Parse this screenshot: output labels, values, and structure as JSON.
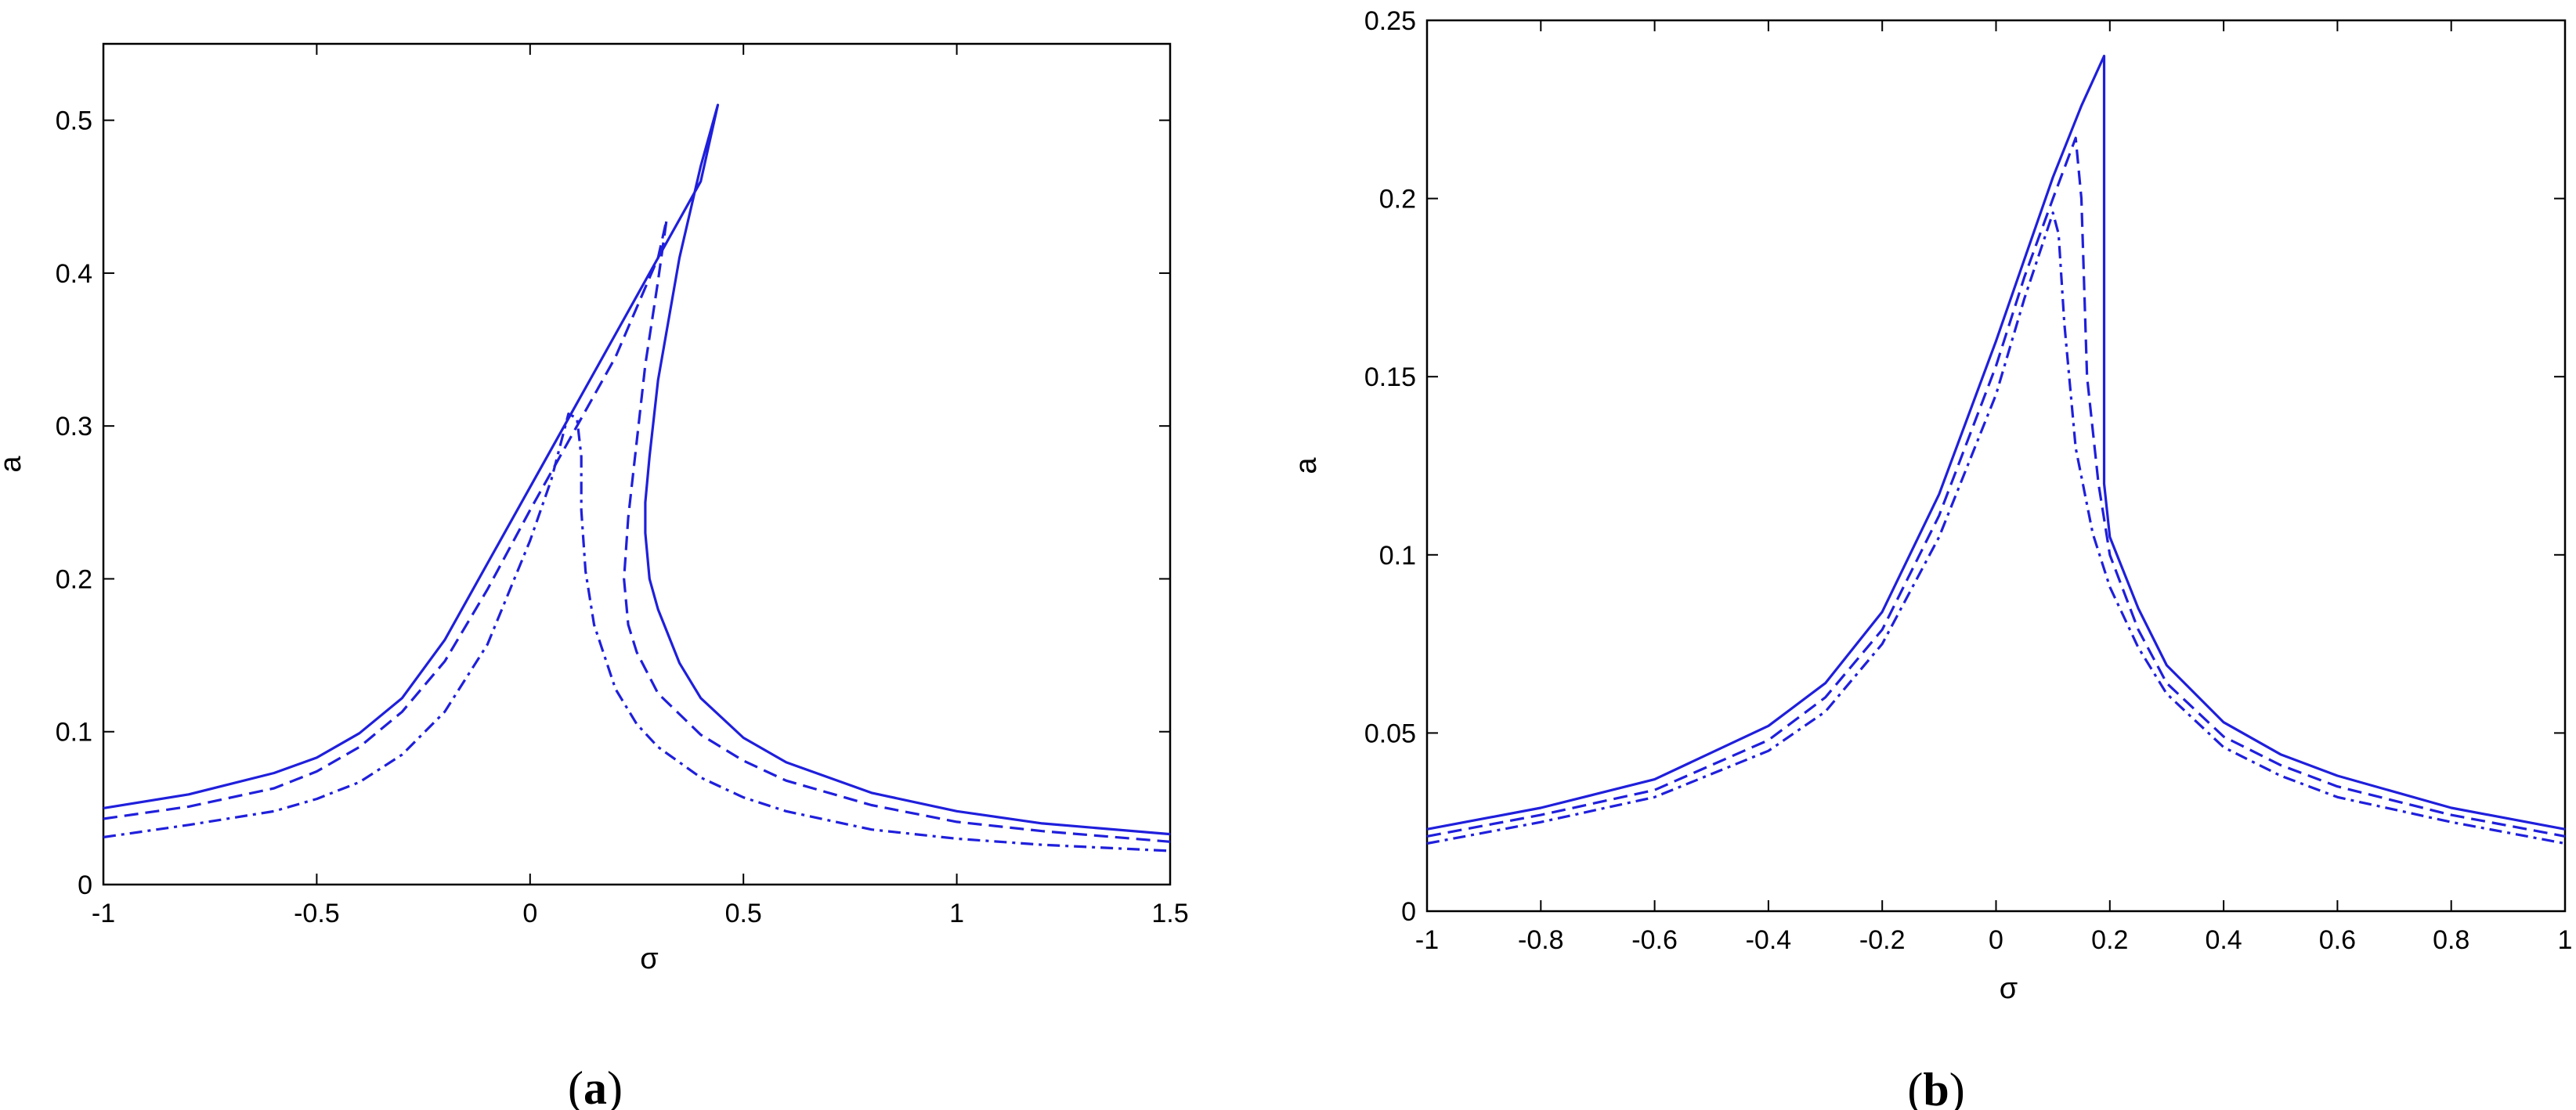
{
  "figure": {
    "panels": [
      {
        "label_open": "(",
        "label_letter": "a",
        "label_close": ")"
      },
      {
        "label_open": "(",
        "label_letter": "b",
        "label_close": ")"
      }
    ]
  },
  "chart_data": [
    {
      "type": "line",
      "panel": "a",
      "title": "",
      "xlabel": "σ",
      "ylabel": "a",
      "xlim": [
        -1,
        1.5
      ],
      "ylim": [
        0,
        0.55
      ],
      "xticks": [
        -1,
        -0.5,
        0,
        0.5,
        1,
        1.5
      ],
      "xtick_labels": [
        "-1",
        "-0.5",
        "0",
        "0.5",
        "1",
        "1.5"
      ],
      "yticks": [
        0,
        0.1,
        0.2,
        0.3,
        0.4,
        0.5
      ],
      "ytick_labels": [
        "0",
        "0.1",
        "0.2",
        "0.3",
        "0.4",
        "0.5"
      ],
      "grid": false,
      "color": "#1f1fdc",
      "series": [
        {
          "style": "solid",
          "x": [
            -1,
            -0.8,
            -0.6,
            -0.5,
            -0.4,
            -0.3,
            -0.2,
            -0.1,
            0,
            0.1,
            0.2,
            0.3,
            0.4,
            0.44,
            0.44,
            0.4,
            0.35,
            0.3,
            0.28,
            0.27,
            0.27,
            0.28,
            0.3,
            0.35,
            0.4,
            0.5,
            0.6,
            0.8,
            1.0,
            1.2,
            1.5
          ],
          "y": [
            0.05,
            0.059,
            0.073,
            0.083,
            0.099,
            0.122,
            0.16,
            0.21,
            0.26,
            0.31,
            0.36,
            0.41,
            0.46,
            0.51,
            0.51,
            0.47,
            0.41,
            0.33,
            0.28,
            0.25,
            0.23,
            0.2,
            0.18,
            0.145,
            0.122,
            0.096,
            0.08,
            0.06,
            0.048,
            0.04,
            0.033
          ]
        },
        {
          "style": "dashed",
          "x": [
            -1,
            -0.8,
            -0.6,
            -0.5,
            -0.4,
            -0.3,
            -0.2,
            -0.1,
            0,
            0.1,
            0.2,
            0.3,
            0.32,
            0.32,
            0.3,
            0.27,
            0.25,
            0.23,
            0.22,
            0.23,
            0.25,
            0.3,
            0.4,
            0.5,
            0.6,
            0.8,
            1.0,
            1.2,
            1.5
          ],
          "y": [
            0.043,
            0.051,
            0.063,
            0.074,
            0.09,
            0.113,
            0.146,
            0.193,
            0.245,
            0.295,
            0.345,
            0.41,
            0.435,
            0.435,
            0.395,
            0.34,
            0.29,
            0.24,
            0.2,
            0.17,
            0.152,
            0.125,
            0.098,
            0.081,
            0.068,
            0.052,
            0.041,
            0.035,
            0.028
          ]
        },
        {
          "style": "dashdot",
          "x": [
            -1,
            -0.8,
            -0.6,
            -0.5,
            -0.4,
            -0.3,
            -0.2,
            -0.1,
            0,
            0.05,
            0.09,
            0.11,
            0.12,
            0.12,
            0.13,
            0.15,
            0.2,
            0.25,
            0.3,
            0.4,
            0.5,
            0.6,
            0.8,
            1.0,
            1.2,
            1.5
          ],
          "y": [
            0.031,
            0.039,
            0.048,
            0.056,
            0.067,
            0.085,
            0.113,
            0.157,
            0.225,
            0.265,
            0.308,
            0.305,
            0.28,
            0.245,
            0.205,
            0.17,
            0.128,
            0.105,
            0.09,
            0.07,
            0.057,
            0.048,
            0.036,
            0.03,
            0.026,
            0.022
          ]
        }
      ]
    },
    {
      "type": "line",
      "panel": "b",
      "title": "",
      "xlabel": "σ",
      "ylabel": "a",
      "xlim": [
        -1,
        1
      ],
      "ylim": [
        0,
        0.25
      ],
      "xticks": [
        -1,
        -0.8,
        -0.6,
        -0.4,
        -0.2,
        0,
        0.2,
        0.4,
        0.6,
        0.8,
        1
      ],
      "xtick_labels": [
        "-1",
        "-0.8",
        "-0.6",
        "-0.4",
        "-0.2",
        "0",
        "0.2",
        "0.4",
        "0.6",
        "0.8",
        "1"
      ],
      "yticks": [
        0,
        0.05,
        0.1,
        0.15,
        0.2,
        0.25
      ],
      "ytick_labels": [
        "0",
        "0.05",
        "0.1",
        "0.15",
        "0.2",
        "0.25"
      ],
      "grid": false,
      "color": "#1f1fdc",
      "series": [
        {
          "style": "solid",
          "x": [
            -1,
            -0.8,
            -0.6,
            -0.4,
            -0.3,
            -0.2,
            -0.1,
            0,
            0.05,
            0.1,
            0.15,
            0.19,
            0.19,
            0.19,
            0.2,
            0.25,
            0.3,
            0.4,
            0.5,
            0.6,
            0.8,
            1.0
          ],
          "y": [
            0.023,
            0.029,
            0.037,
            0.052,
            0.064,
            0.084,
            0.117,
            0.16,
            0.183,
            0.206,
            0.226,
            0.24,
            0.23,
            0.12,
            0.105,
            0.085,
            0.069,
            0.053,
            0.044,
            0.038,
            0.029,
            0.023
          ]
        },
        {
          "style": "dashed",
          "x": [
            -1,
            -0.8,
            -0.6,
            -0.4,
            -0.3,
            -0.2,
            -0.1,
            0,
            0.05,
            0.1,
            0.14,
            0.15,
            0.16,
            0.18,
            0.2,
            0.25,
            0.3,
            0.4,
            0.5,
            0.6,
            0.8,
            1.0
          ],
          "y": [
            0.021,
            0.027,
            0.034,
            0.048,
            0.06,
            0.079,
            0.111,
            0.153,
            0.178,
            0.2,
            0.217,
            0.2,
            0.15,
            0.12,
            0.1,
            0.079,
            0.064,
            0.049,
            0.041,
            0.035,
            0.027,
            0.021
          ]
        },
        {
          "style": "dashdot",
          "x": [
            -1,
            -0.8,
            -0.6,
            -0.4,
            -0.3,
            -0.2,
            -0.1,
            0,
            0.05,
            0.1,
            0.11,
            0.12,
            0.14,
            0.17,
            0.2,
            0.25,
            0.3,
            0.4,
            0.5,
            0.6,
            0.8,
            1.0
          ],
          "y": [
            0.019,
            0.025,
            0.032,
            0.045,
            0.056,
            0.075,
            0.105,
            0.145,
            0.172,
            0.196,
            0.19,
            0.165,
            0.13,
            0.106,
            0.091,
            0.074,
            0.061,
            0.046,
            0.038,
            0.032,
            0.025,
            0.019
          ]
        }
      ]
    }
  ]
}
